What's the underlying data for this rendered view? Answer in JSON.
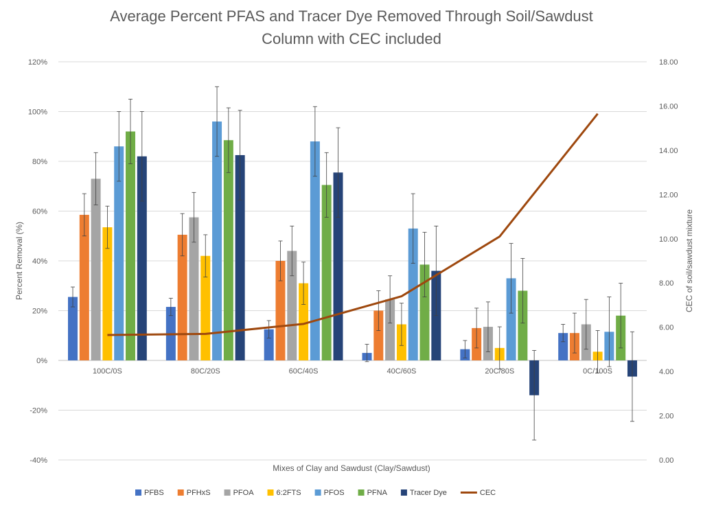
{
  "chart_data": {
    "type": "bar",
    "title_lines": [
      "Average Percent PFAS and Tracer Dye Removed Through Soil/Sawdust",
      "Column with CEC included"
    ],
    "xlabel": "Mixes of Clay and Sawdust (Clay/Sawdust)",
    "ylabel": "Percent Removal (%)",
    "y2label": "CEC of soil/sawdust mixture",
    "ylim": [
      -40,
      120
    ],
    "y2lim": [
      0,
      18
    ],
    "y_ticks": [
      "-40%",
      "-20%",
      "0%",
      "20%",
      "40%",
      "60%",
      "80%",
      "100%",
      "120%"
    ],
    "y2_ticks": [
      "0.00",
      "2.00",
      "4.00",
      "6.00",
      "8.00",
      "10.00",
      "12.00",
      "14.00",
      "16.00",
      "18.00"
    ],
    "grid": true,
    "legend_position": "bottom",
    "categories": [
      "100C/0S",
      "80C/20S",
      "60C/40S",
      "40C/60S",
      "20C/80S",
      "0C/100S"
    ],
    "series": [
      {
        "name": "PFBS",
        "color": "#4472C4",
        "values": [
          25.5,
          21.5,
          12.5,
          3,
          4.5,
          11
        ],
        "errors": [
          4,
          3.5,
          3.5,
          3.5,
          3.5,
          3.5
        ]
      },
      {
        "name": "PFHxS",
        "color": "#ED7D31",
        "values": [
          58.5,
          50.5,
          40,
          20,
          13,
          11
        ],
        "errors": [
          8.5,
          8.5,
          8,
          8,
          8,
          8
        ]
      },
      {
        "name": "PFOA",
        "color": "#A5A5A5",
        "values": [
          73,
          57.5,
          44,
          24.5,
          13.5,
          14.5
        ],
        "errors": [
          10.5,
          10,
          10,
          9.5,
          10,
          10
        ]
      },
      {
        "name": "6:2FTS",
        "color": "#FFC000",
        "values": [
          53.5,
          42,
          31,
          14.5,
          5,
          3.5
        ],
        "errors": [
          8.5,
          8.5,
          8.5,
          8.5,
          8.5,
          8.5
        ]
      },
      {
        "name": "PFOS",
        "color": "#5B9BD5",
        "values": [
          86,
          96,
          88,
          53,
          33,
          11.5
        ],
        "errors": [
          14,
          14,
          14,
          14,
          14,
          14
        ]
      },
      {
        "name": "PFNA",
        "color": "#70AD47",
        "values": [
          92,
          88.5,
          70.5,
          38.5,
          28,
          18
        ],
        "errors": [
          13,
          13,
          13,
          13,
          13,
          13
        ]
      },
      {
        "name": "Tracer Dye",
        "color": "#264478",
        "values": [
          82,
          82.5,
          75.5,
          36,
          -14,
          -6.5
        ],
        "errors": [
          18,
          18,
          18,
          18,
          18,
          18
        ]
      }
    ],
    "line_series": {
      "name": "CEC",
      "color": "#9E480E",
      "axis": "secondary",
      "values": [
        5.65,
        5.7,
        6.15,
        7.4,
        10.1,
        15.65
      ]
    }
  }
}
